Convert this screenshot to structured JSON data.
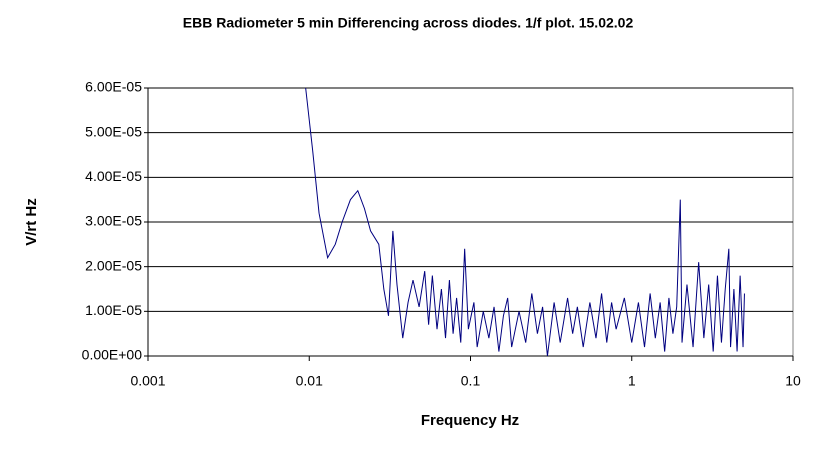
{
  "chart_data": {
    "type": "line",
    "title": "EBB Radiometer 5 min Differencing across diodes. 1/f plot. 15.02.02",
    "x_label": "Frequency Hz",
    "y_label": "V/rt Hz",
    "x_log": true,
    "grid": true,
    "color": "#000080",
    "xlim": [
      0.001,
      10
    ],
    "xticks": [
      0.001,
      0.01,
      0.1,
      1,
      10
    ],
    "ylim": [
      0,
      6e-05
    ],
    "yticks": [
      {
        "value": 0,
        "label": "0.00E+00"
      },
      {
        "value": 1e-05,
        "label": "1.00E-05"
      },
      {
        "value": 2e-05,
        "label": "2.00E-05"
      },
      {
        "value": 3e-05,
        "label": "3.00E-05"
      },
      {
        "value": 4e-05,
        "label": "4.00E-05"
      },
      {
        "value": 5e-05,
        "label": "5.00E-05"
      },
      {
        "value": 6e-05,
        "label": "6.00E-05"
      }
    ],
    "x": [
      0.0095,
      0.0105,
      0.0115,
      0.013,
      0.0145,
      0.016,
      0.018,
      0.02,
      0.022,
      0.024,
      0.027,
      0.029,
      0.031,
      0.033,
      0.035,
      0.038,
      0.041,
      0.044,
      0.048,
      0.052,
      0.055,
      0.058,
      0.062,
      0.066,
      0.07,
      0.074,
      0.078,
      0.082,
      0.087,
      0.092,
      0.097,
      0.105,
      0.11,
      0.12,
      0.13,
      0.14,
      0.15,
      0.16,
      0.17,
      0.18,
      0.2,
      0.22,
      0.24,
      0.26,
      0.28,
      0.3,
      0.33,
      0.36,
      0.4,
      0.43,
      0.46,
      0.5,
      0.55,
      0.6,
      0.65,
      0.7,
      0.75,
      0.8,
      0.9,
      1.0,
      1.1,
      1.2,
      1.3,
      1.4,
      1.5,
      1.6,
      1.7,
      1.8,
      1.9,
      2.0,
      2.05,
      2.2,
      2.4,
      2.6,
      2.8,
      3.0,
      3.2,
      3.4,
      3.6,
      3.8,
      4.0,
      4.1,
      4.3,
      4.5,
      4.7,
      4.9,
      5.0
    ],
    "values": [
      6e-05,
      4.6e-05,
      3.2e-05,
      2.2e-05,
      2.5e-05,
      3e-05,
      3.5e-05,
      3.7e-05,
      3.3e-05,
      2.8e-05,
      2.5e-05,
      1.5e-05,
      9e-06,
      2.8e-05,
      1.6e-05,
      4e-06,
      1.2e-05,
      1.7e-05,
      1.1e-05,
      1.9e-05,
      7e-06,
      1.8e-05,
      6e-06,
      1.5e-05,
      4e-06,
      1.7e-05,
      5e-06,
      1.3e-05,
      3e-06,
      2.4e-05,
      6e-06,
      1.2e-05,
      2e-06,
      1e-05,
      4e-06,
      1.1e-05,
      1e-06,
      9e-06,
      1.3e-05,
      2e-06,
      1e-05,
      3e-06,
      1.4e-05,
      5e-06,
      1.1e-05,
      0,
      1.2e-05,
      3e-06,
      1.3e-05,
      5e-06,
      1.1e-05,
      2e-06,
      1.2e-05,
      4e-06,
      1.4e-05,
      3e-06,
      1.2e-05,
      6e-06,
      1.3e-05,
      3e-06,
      1.2e-05,
      2e-06,
      1.4e-05,
      4e-06,
      1.2e-05,
      1e-06,
      1.3e-05,
      5e-06,
      1.1e-05,
      3.5e-05,
      3e-06,
      1.6e-05,
      2e-06,
      2.1e-05,
      4e-06,
      1.6e-05,
      1e-06,
      1.8e-05,
      3e-06,
      1.5e-05,
      2.4e-05,
      2e-06,
      1.5e-05,
      1e-06,
      1.8e-05,
      2e-06,
      1.4e-05
    ]
  }
}
